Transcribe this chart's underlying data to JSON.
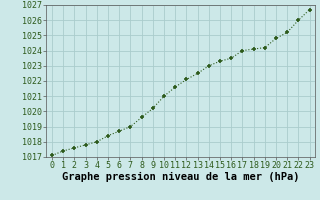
{
  "x": [
    0,
    1,
    2,
    3,
    4,
    5,
    6,
    7,
    8,
    9,
    10,
    11,
    12,
    13,
    14,
    15,
    16,
    17,
    18,
    19,
    20,
    21,
    22,
    23
  ],
  "y": [
    1017.1,
    1017.4,
    1017.6,
    1017.8,
    1018.0,
    1018.4,
    1018.7,
    1019.0,
    1019.6,
    1020.2,
    1021.0,
    1021.6,
    1022.1,
    1022.5,
    1023.0,
    1023.3,
    1023.5,
    1024.0,
    1024.1,
    1024.2,
    1024.8,
    1025.2,
    1026.0,
    1026.7
  ],
  "ylim": [
    1017,
    1027
  ],
  "yticks": [
    1017,
    1018,
    1019,
    1020,
    1021,
    1022,
    1023,
    1024,
    1025,
    1026,
    1027
  ],
  "xticks": [
    0,
    1,
    2,
    3,
    4,
    5,
    6,
    7,
    8,
    9,
    10,
    11,
    12,
    13,
    14,
    15,
    16,
    17,
    18,
    19,
    20,
    21,
    22,
    23
  ],
  "xlabel": "Graphe pression niveau de la mer (hPa)",
  "line_color": "#2d5a1b",
  "marker_color": "#2d5a1b",
  "bg_color": "#cce8e8",
  "grid_color": "#aacccc",
  "xlabel_fontsize": 7.5,
  "tick_fontsize": 6.0
}
